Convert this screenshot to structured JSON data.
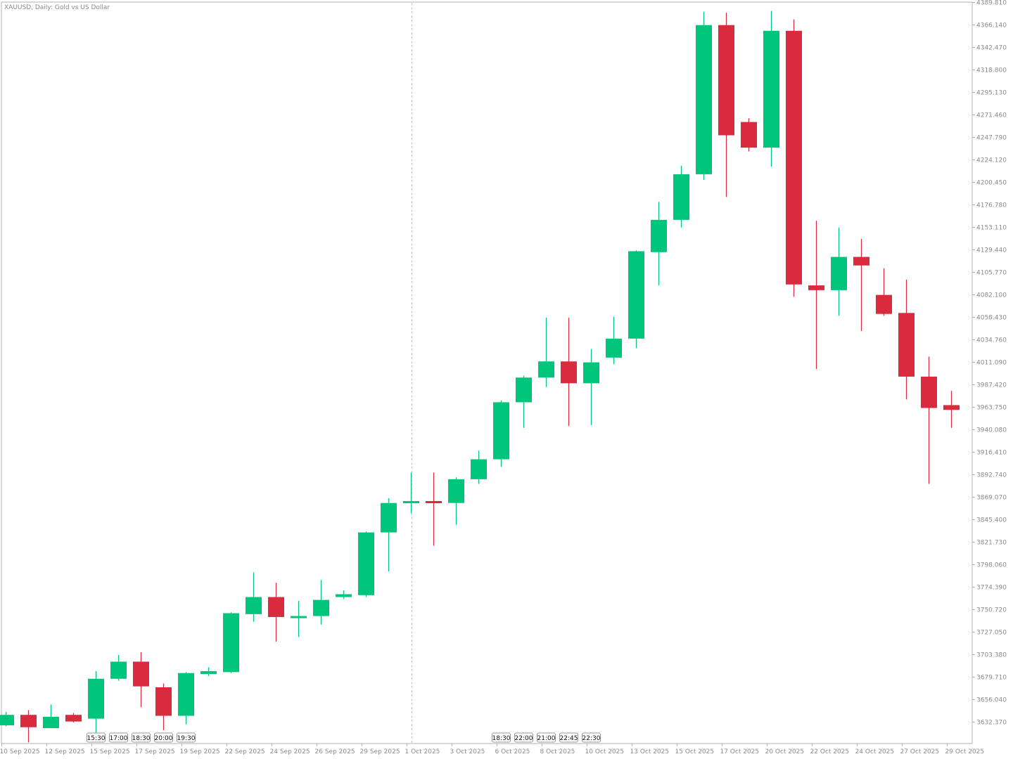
{
  "window": {
    "title": "XAUUSD, Daily:  Gold vs US Dollar"
  },
  "colors": {
    "bull": "#02c57c",
    "bear": "#d92a3e",
    "axis": "#b0b0b0",
    "label": "#8a8a8a",
    "separator": "#c8c8c8"
  },
  "chart_data": {
    "type": "candlestick",
    "symbol": "XAUUSD",
    "timeframe": "Daily",
    "description": "Gold vs US Dollar",
    "ylim": [
      3612,
      4390
    ],
    "price_ticks": [
      "4389.810",
      "4366.140",
      "4342.470",
      "4318.800",
      "4295.130",
      "4271.460",
      "4247.790",
      "4224.120",
      "4200.450",
      "4176.780",
      "4153.110",
      "4129.440",
      "4105.770",
      "4082.100",
      "4058.430",
      "4034.760",
      "4011.090",
      "3987.420",
      "3963.750",
      "3940.080",
      "3916.410",
      "3892.740",
      "3869.070",
      "3845.400",
      "3821.730",
      "3798.060",
      "3774.390",
      "3750.720",
      "3727.050",
      "3703.380",
      "3679.710",
      "3656.040",
      "3632.370"
    ],
    "date_labels": [
      {
        "i": 0,
        "text": "10 Sep 2025"
      },
      {
        "i": 2,
        "text": "12 Sep 2025"
      },
      {
        "i": 4,
        "text": "15 Sep 2025"
      },
      {
        "i": 6,
        "text": "17 Sep 2025"
      },
      {
        "i": 8,
        "text": "19 Sep 2025"
      },
      {
        "i": 10,
        "text": "22 Sep 2025"
      },
      {
        "i": 12,
        "text": "24 Sep 2025"
      },
      {
        "i": 14,
        "text": "26 Sep 2025"
      },
      {
        "i": 16,
        "text": "29 Sep 2025"
      },
      {
        "i": 18,
        "text": "1 Oct 2025"
      },
      {
        "i": 20,
        "text": "3 Oct 2025"
      },
      {
        "i": 22,
        "text": "6 Oct 2025"
      },
      {
        "i": 24,
        "text": "8 Oct 2025"
      },
      {
        "i": 26,
        "text": "10 Oct 2025"
      },
      {
        "i": 28,
        "text": "13 Oct 2025"
      },
      {
        "i": 30,
        "text": "15 Oct 2025"
      },
      {
        "i": 32,
        "text": "17 Oct 2025"
      },
      {
        "i": 34,
        "text": "20 Oct 2025"
      },
      {
        "i": 36,
        "text": "22 Oct 2025"
      },
      {
        "i": 38,
        "text": "24 Oct 2025"
      },
      {
        "i": 40,
        "text": "27 Oct 2025"
      },
      {
        "i": 42,
        "text": "29 Oct 2025"
      }
    ],
    "session_labels": [
      {
        "i": 4,
        "text": "15:30"
      },
      {
        "i": 5,
        "text": "17:00"
      },
      {
        "i": 6,
        "text": "18:30"
      },
      {
        "i": 7,
        "text": "20:00"
      },
      {
        "i": 8,
        "text": "19:30"
      },
      {
        "i": 22,
        "text": "18:30"
      },
      {
        "i": 23,
        "text": "22:00"
      },
      {
        "i": 24,
        "text": "21:00"
      },
      {
        "i": 25,
        "text": "22:45"
      },
      {
        "i": 26,
        "text": "22:30"
      }
    ],
    "separator_index": 18,
    "candles": [
      {
        "o": 3629,
        "h": 3643,
        "l": 3628,
        "c": 3640
      },
      {
        "o": 3640,
        "h": 3645,
        "l": 3611,
        "c": 3627
      },
      {
        "o": 3626,
        "h": 3651,
        "l": 3626,
        "c": 3638
      },
      {
        "o": 3640,
        "h": 3642,
        "l": 3632,
        "c": 3633
      },
      {
        "o": 3636,
        "h": 3686,
        "l": 3620,
        "c": 3678
      },
      {
        "o": 3678,
        "h": 3703,
        "l": 3676,
        "c": 3696
      },
      {
        "o": 3696,
        "h": 3706,
        "l": 3648,
        "c": 3670
      },
      {
        "o": 3669,
        "h": 3673,
        "l": 3624,
        "c": 3639
      },
      {
        "o": 3639,
        "h": 3685,
        "l": 3630,
        "c": 3684
      },
      {
        "o": 3683,
        "h": 3690,
        "l": 3681,
        "c": 3686
      },
      {
        "o": 3685,
        "h": 3748,
        "l": 3684,
        "c": 3747
      },
      {
        "o": 3746,
        "h": 3790,
        "l": 3738,
        "c": 3764
      },
      {
        "o": 3764,
        "h": 3779,
        "l": 3717,
        "c": 3743
      },
      {
        "o": 3742,
        "h": 3760,
        "l": 3722,
        "c": 3744
      },
      {
        "o": 3744,
        "h": 3782,
        "l": 3735,
        "c": 3761
      },
      {
        "o": 3764,
        "h": 3771,
        "l": 3762,
        "c": 3767
      },
      {
        "o": 3766,
        "h": 3833,
        "l": 3764,
        "c": 3832
      },
      {
        "o": 3832,
        "h": 3868,
        "l": 3791,
        "c": 3863
      },
      {
        "o": 3864,
        "h": 3895,
        "l": 3852,
        "c": 3865
      },
      {
        "o": 3865,
        "h": 3895,
        "l": 3818,
        "c": 3863
      },
      {
        "o": 3863,
        "h": 3890,
        "l": 3840,
        "c": 3888
      },
      {
        "o": 3888,
        "h": 3918,
        "l": 3883,
        "c": 3909
      },
      {
        "o": 3909,
        "h": 3971,
        "l": 3901,
        "c": 3969
      },
      {
        "o": 3969,
        "h": 3997,
        "l": 3942,
        "c": 3995
      },
      {
        "o": 3995,
        "h": 4058,
        "l": 3985,
        "c": 4012
      },
      {
        "o": 4012,
        "h": 4058,
        "l": 3944,
        "c": 3989
      },
      {
        "o": 3989,
        "h": 4025,
        "l": 3945,
        "c": 4011
      },
      {
        "o": 4016,
        "h": 4059,
        "l": 4009,
        "c": 4036
      },
      {
        "o": 4036,
        "h": 4129,
        "l": 4026,
        "c": 4128
      },
      {
        "o": 4127,
        "h": 4180,
        "l": 4092,
        "c": 4161
      },
      {
        "o": 4161,
        "h": 4218,
        "l": 4153,
        "c": 4209
      },
      {
        "o": 4209,
        "h": 4380,
        "l": 4203,
        "c": 4366
      },
      {
        "o": 4366,
        "h": 4379,
        "l": 4185,
        "c": 4250
      },
      {
        "o": 4264,
        "h": 4268,
        "l": 4233,
        "c": 4237
      },
      {
        "o": 4237,
        "h": 4381,
        "l": 4217,
        "c": 4360
      },
      {
        "o": 4360,
        "h": 4372,
        "l": 4080,
        "c": 4093
      },
      {
        "o": 4092,
        "h": 4160,
        "l": 4004,
        "c": 4087
      },
      {
        "o": 4087,
        "h": 4153,
        "l": 4060,
        "c": 4122
      },
      {
        "o": 4122,
        "h": 4141,
        "l": 4044,
        "c": 4113
      },
      {
        "o": 4082,
        "h": 4110,
        "l": 4060,
        "c": 4062
      },
      {
        "o": 4063,
        "h": 4098,
        "l": 3972,
        "c": 3996
      },
      {
        "o": 3996,
        "h": 4017,
        "l": 3883,
        "c": 3963
      },
      {
        "o": 3966,
        "h": 3981,
        "l": 3942,
        "c": 3961
      }
    ]
  }
}
